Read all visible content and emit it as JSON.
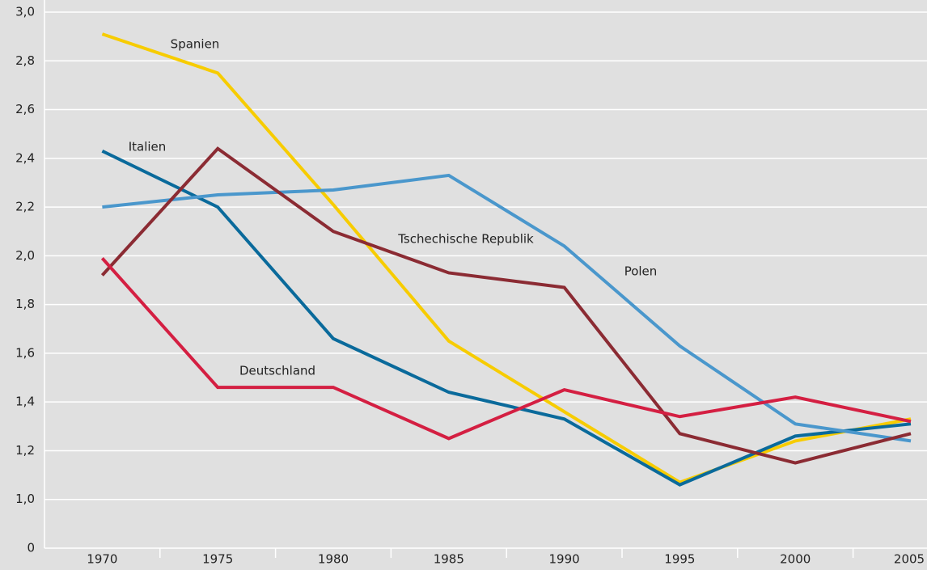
{
  "chart_data": {
    "type": "line",
    "x": [
      1970,
      1975,
      1980,
      1985,
      1990,
      1995,
      2000,
      2005
    ],
    "xlim": [
      1967.5,
      2005.7
    ],
    "xticks": [
      1970,
      1975,
      1980,
      1985,
      1990,
      1995,
      2000,
      2005
    ],
    "ylim": [
      0,
      3
    ],
    "yticks": [
      0,
      {
        "value": 1,
        "label": "1,0"
      },
      {
        "value": 1.2,
        "label": "1,2"
      },
      {
        "value": 1.4,
        "label": "1,4"
      },
      {
        "value": 1.6,
        "label": "1,6"
      },
      {
        "value": 1.8,
        "label": "1,8"
      },
      {
        "value": 2,
        "label": "2,0"
      },
      {
        "value": 2.2,
        "label": "2,2"
      },
      {
        "value": 2.4,
        "label": "2,4"
      },
      {
        "value": 2.6,
        "label": "2,6"
      },
      {
        "value": 2.8,
        "label": "2,8"
      },
      {
        "value": 3,
        "label": "3,0"
      }
    ],
    "grid": true,
    "series": [
      {
        "name": "Spanien",
        "color": "#f7cc00",
        "values": [
          2.91,
          2.75,
          2.21,
          1.65,
          1.36,
          1.07,
          1.24,
          1.33
        ]
      },
      {
        "name": "Italien",
        "color": "#0a6a9b",
        "values": [
          2.43,
          2.2,
          1.66,
          1.44,
          1.33,
          1.06,
          1.26,
          1.31
        ]
      },
      {
        "name": "Polen",
        "color": "#4a97cc",
        "values": [
          2.2,
          2.25,
          2.27,
          2.33,
          2.04,
          1.63,
          1.31,
          1.24
        ]
      },
      {
        "name": "Tschechische Republik",
        "color": "#8b2b33",
        "values": [
          1.92,
          2.44,
          2.1,
          1.93,
          1.87,
          1.27,
          1.15,
          1.27
        ]
      },
      {
        "name": "Deutschland",
        "color": "#d41f42",
        "values": [
          1.99,
          1.46,
          1.46,
          1.25,
          1.45,
          1.34,
          1.42,
          1.32
        ]
      }
    ]
  }
}
